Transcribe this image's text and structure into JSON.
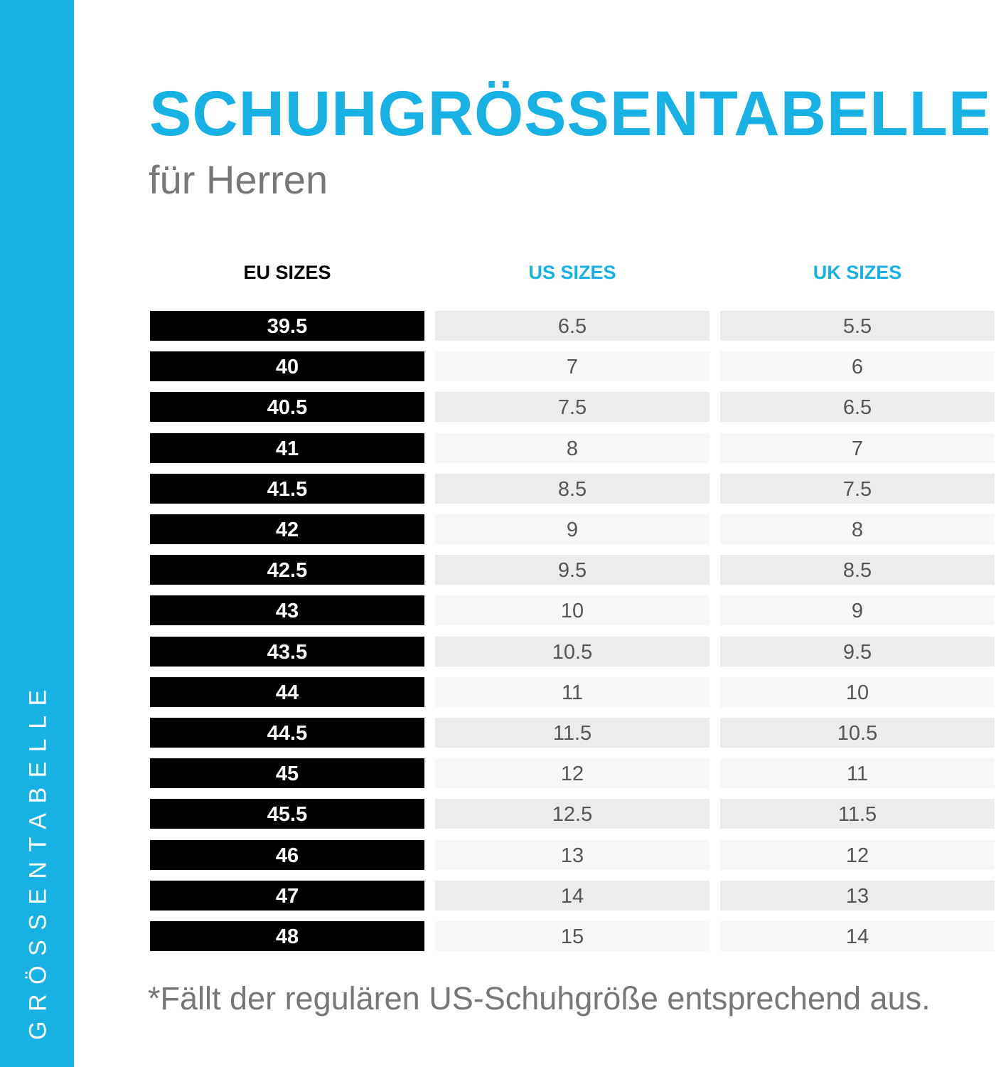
{
  "sidebar": {
    "label": "GRÖSSENTABELLE"
  },
  "header": {
    "title": "SCHUHGRÖSSENTABELLE",
    "subtitle": "für Herren"
  },
  "colors": {
    "accent": "#17b1e3",
    "eu_cell": "#000000",
    "gray_text": "#777777"
  },
  "table": {
    "headers": [
      "EU SIZES",
      "US SIZES",
      "UK SIZES"
    ],
    "rows": [
      [
        "39.5",
        "6.5",
        "5.5"
      ],
      [
        "40",
        "7",
        "6"
      ],
      [
        "40.5",
        "7.5",
        "6.5"
      ],
      [
        "41",
        "8",
        "7"
      ],
      [
        "41.5",
        "8.5",
        "7.5"
      ],
      [
        "42",
        "9",
        "8"
      ],
      [
        "42.5",
        "9.5",
        "8.5"
      ],
      [
        "43",
        "10",
        "9"
      ],
      [
        "43.5",
        "10.5",
        "9.5"
      ],
      [
        "44",
        "11",
        "10"
      ],
      [
        "44.5",
        "11.5",
        "10.5"
      ],
      [
        "45",
        "12",
        "11"
      ],
      [
        "45.5",
        "12.5",
        "11.5"
      ],
      [
        "46",
        "13",
        "12"
      ],
      [
        "47",
        "14",
        "13"
      ],
      [
        "48",
        "15",
        "14"
      ]
    ]
  },
  "footnote": "*Fällt der regulären US-Schuhgröße entsprechend aus."
}
